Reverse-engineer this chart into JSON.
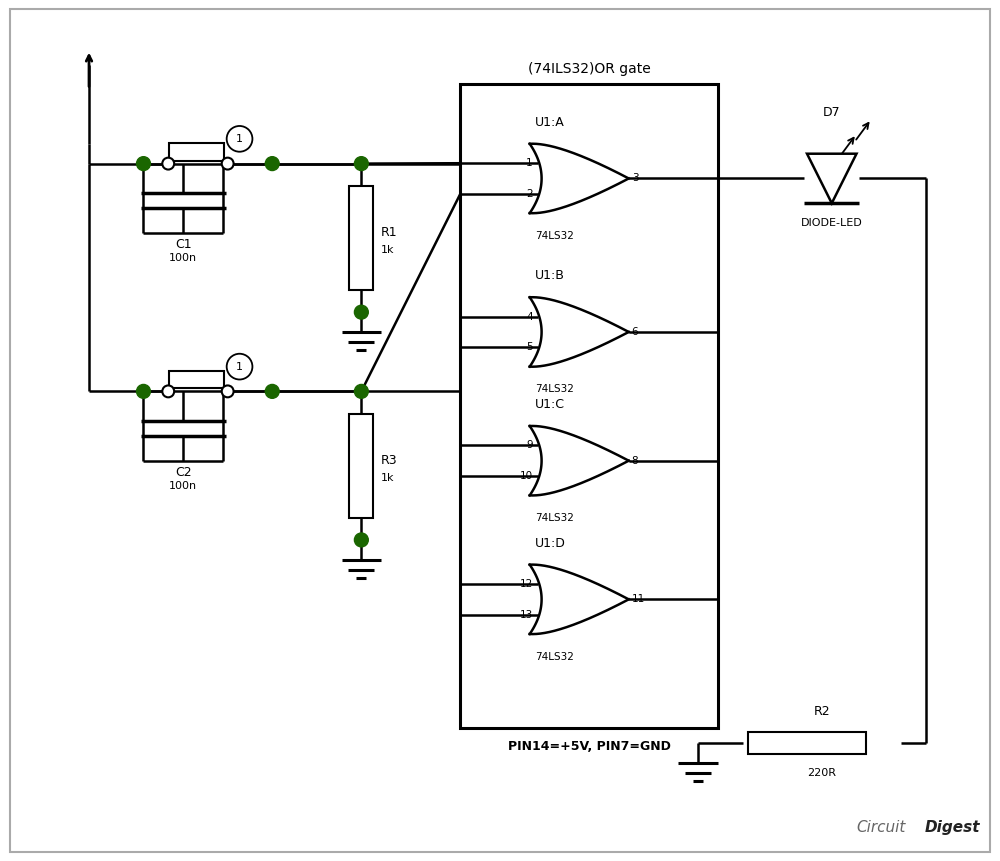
{
  "bg_color": "#ffffff",
  "line_color": "#000000",
  "dot_color": "#1a6600",
  "title": "(74ILS32)OR gate",
  "subtitle": "PIN14=+5V, PIN7=GND",
  "watermark_light": "Circuit",
  "watermark_bold": "Digest",
  "border_color": "#aaaaaa"
}
